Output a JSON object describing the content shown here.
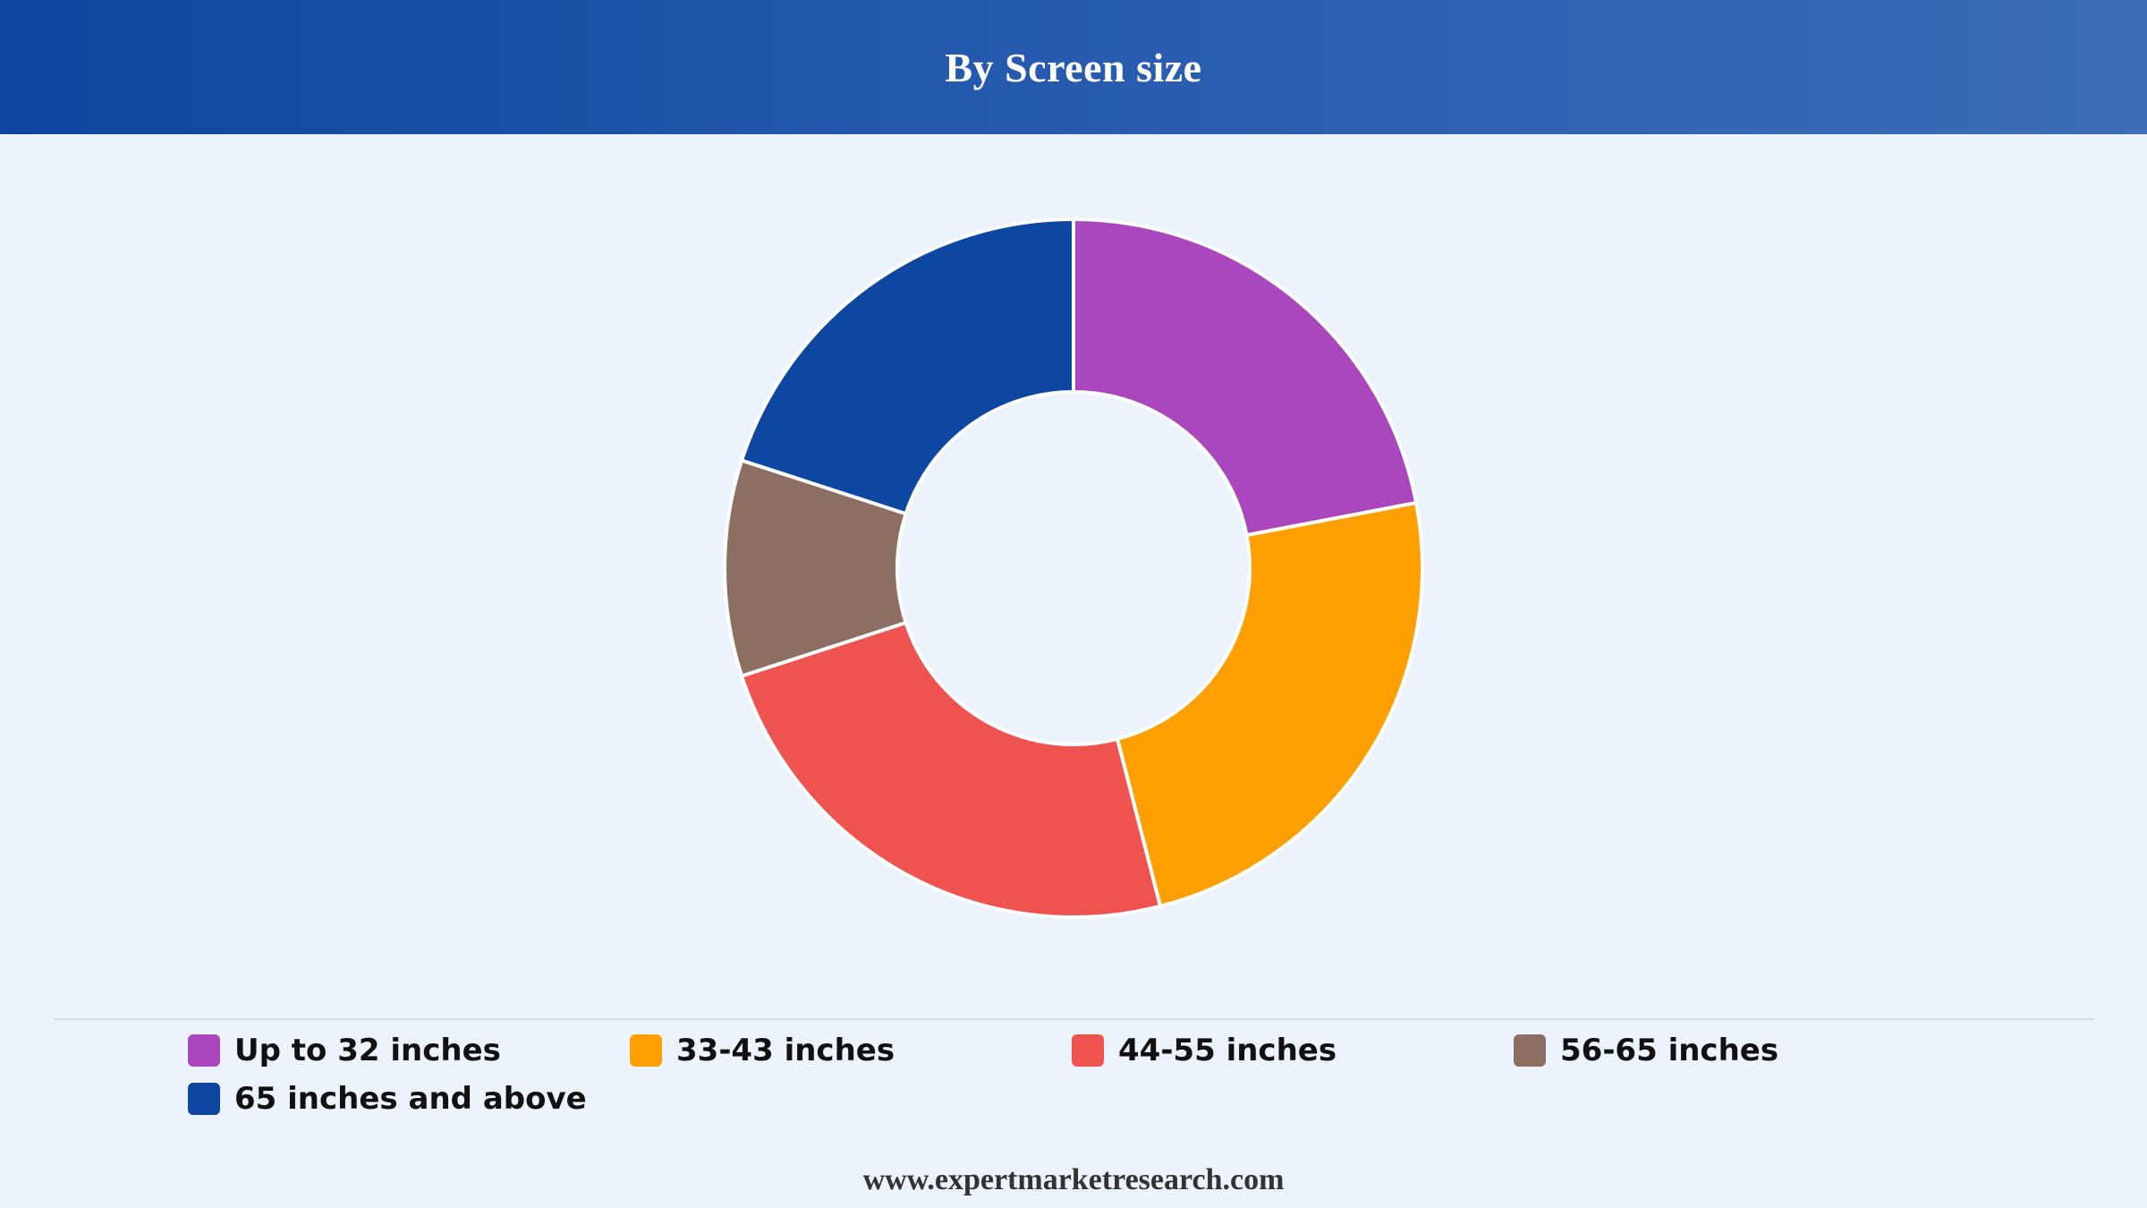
{
  "header": {
    "title": "By Screen size"
  },
  "chart_data": {
    "type": "pie",
    "variant": "donut",
    "title": "By Screen size",
    "categories": [
      "Up to 32 inches",
      "33-43 inches",
      "44-55 inches",
      "56-65 inches",
      "65 inches and above"
    ],
    "values": [
      22,
      24,
      24,
      10,
      20
    ],
    "colors": [
      "#ab47bc",
      "#ffa000",
      "#ef5350",
      "#8d6e63",
      "#0d47a1"
    ],
    "legend_position": "bottom"
  },
  "legend": {
    "items": [
      {
        "label": "Up to 32 inches",
        "color": "#ab47bc"
      },
      {
        "label": "33-43 inches",
        "color": "#ffa000"
      },
      {
        "label": "44-55 inches",
        "color": "#ef5350"
      },
      {
        "label": "56-65 inches",
        "color": "#8d6e63"
      },
      {
        "label": "65 inches and above",
        "color": "#0d47a1"
      }
    ]
  },
  "footer": {
    "url": "www.expertmarketresearch.com"
  }
}
